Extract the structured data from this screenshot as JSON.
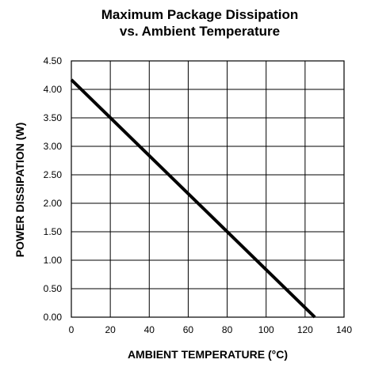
{
  "chart_data": {
    "type": "line",
    "title": [
      "Maximum Package Dissipation",
      "vs. Ambient Temperature"
    ],
    "xlabel": "AMBIENT TEMPERATURE (°C)",
    "ylabel": "POWER DISSIPATION (W)",
    "xlim": [
      0,
      140
    ],
    "ylim": [
      0,
      4.5
    ],
    "x_ticks": [
      0,
      20,
      40,
      60,
      80,
      100,
      120,
      140
    ],
    "y_ticks": [
      0,
      0.5,
      1.0,
      1.5,
      2.0,
      2.5,
      3.0,
      3.5,
      4.0,
      4.5
    ],
    "x_tick_labels": [
      "0",
      "20",
      "40",
      "60",
      "80",
      "100",
      "120",
      "140"
    ],
    "y_tick_labels": [
      "0.00",
      "0.50",
      "1.00",
      "1.50",
      "2.00",
      "2.50",
      "3.00",
      "3.50",
      "4.00",
      "4.50"
    ],
    "grid": true,
    "series": [
      {
        "x": [
          0,
          125
        ],
        "y": [
          4.17,
          0
        ],
        "color": "#000000"
      }
    ]
  }
}
